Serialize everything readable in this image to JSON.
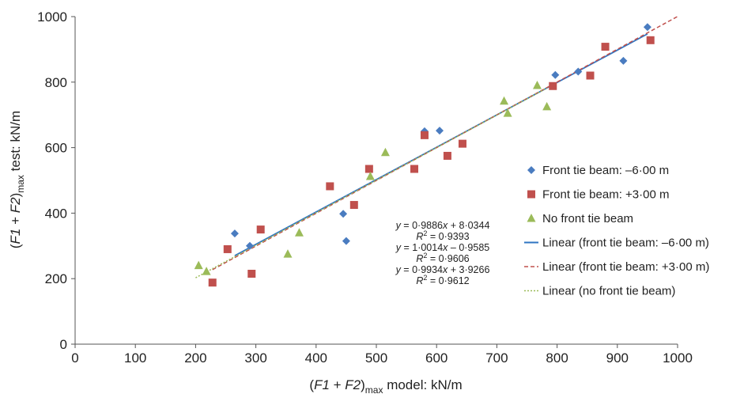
{
  "chart_data": {
    "type": "scatter",
    "xlabel": {
      "pre": "(",
      "F1": "F1",
      "plus": " + ",
      "F2": "F2",
      "close": ")",
      "sub": "max",
      "post": " model: kN/m"
    },
    "ylabel": {
      "pre": "(",
      "F1": "F1",
      "plus": " + ",
      "F2": "F2",
      "close": ")",
      "sub": "max",
      "post": " test: kN/m"
    },
    "xlim": [
      0,
      1000
    ],
    "ylim": [
      0,
      1000
    ],
    "x_ticks": [
      "0",
      "100",
      "200",
      "300",
      "400",
      "500",
      "600",
      "700",
      "800",
      "900",
      "1000"
    ],
    "y_ticks": [
      "0",
      "200",
      "400",
      "600",
      "800",
      "1000"
    ],
    "grid": false,
    "legend_position": "right",
    "series": [
      {
        "name": "Front tie beam: –6·00 m",
        "marker": "diamond",
        "color": "#4a7cc0",
        "points": [
          [
            265,
            338
          ],
          [
            290,
            300
          ],
          [
            445,
            398
          ],
          [
            450,
            315
          ],
          [
            580,
            650
          ],
          [
            605,
            652
          ],
          [
            797,
            822
          ],
          [
            835,
            832
          ],
          [
            910,
            865
          ],
          [
            950,
            968
          ]
        ]
      },
      {
        "name": "Front tie beam: +3·00 m",
        "marker": "square",
        "color": "#c0504d",
        "points": [
          [
            228,
            188
          ],
          [
            253,
            290
          ],
          [
            293,
            215
          ],
          [
            308,
            350
          ],
          [
            423,
            482
          ],
          [
            463,
            425
          ],
          [
            488,
            535
          ],
          [
            563,
            535
          ],
          [
            580,
            638
          ],
          [
            618,
            575
          ],
          [
            643,
            612
          ],
          [
            793,
            788
          ],
          [
            855,
            820
          ],
          [
            880,
            908
          ],
          [
            955,
            928
          ]
        ]
      },
      {
        "name": "No front tie beam",
        "marker": "triangle",
        "color": "#9bbb59",
        "points": [
          [
            205,
            240
          ],
          [
            218,
            222
          ],
          [
            353,
            275
          ],
          [
            372,
            340
          ],
          [
            490,
            512
          ],
          [
            515,
            585
          ],
          [
            712,
            742
          ],
          [
            718,
            705
          ],
          [
            767,
            790
          ],
          [
            783,
            725
          ]
        ]
      }
    ],
    "trendlines": [
      {
        "name": "Linear (front tie beam: –6·00 m)",
        "slope": 0.9886,
        "intercept": 8.0344,
        "x_range": [
          265,
          950
        ],
        "color": "#2e75c2",
        "style": "solid"
      },
      {
        "name": "Linear (front tie beam: +3·00 m)",
        "slope": 1.0014,
        "intercept": -0.9585,
        "x_range": [
          228,
          1000
        ],
        "color": "#c0504d",
        "style": "dashed"
      },
      {
        "name": "Linear (no front tie beam)",
        "slope": 0.9934,
        "intercept": 3.9266,
        "x_range": [
          200,
          783
        ],
        "color": "#9bbb59",
        "style": "dotted"
      }
    ],
    "equations": [
      {
        "y": "y",
        "eq": " = 0·9886",
        "x": "x",
        "rest": " + 8·0344",
        "r_label": "R",
        "r_sup": "2",
        "r_val": " = 0·9393"
      },
      {
        "y": "y",
        "eq": " = 1·0014",
        "x": "x",
        "rest": " – 0·9585",
        "r_label": "R",
        "r_sup": "2",
        "r_val": " = 0·9606"
      },
      {
        "y": "y",
        "eq": " = 0·9934",
        "x": "x",
        "rest": " + 3·9266",
        "r_label": "R",
        "r_sup": "2",
        "r_val": " = 0·9612"
      }
    ]
  }
}
